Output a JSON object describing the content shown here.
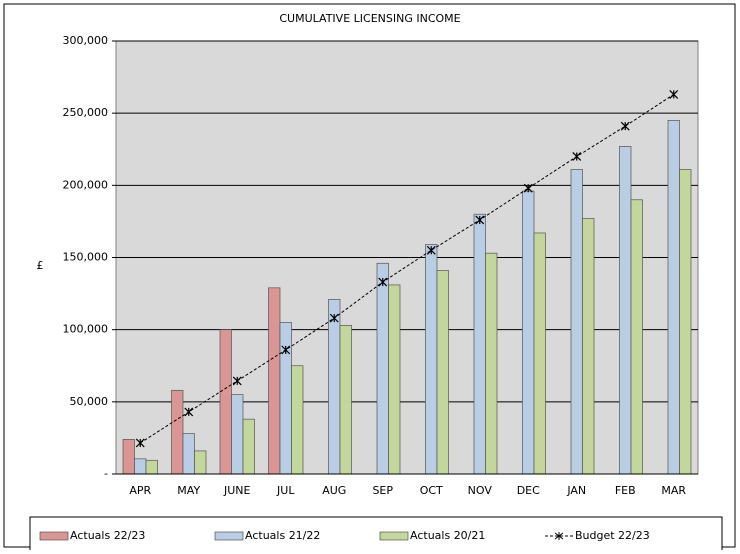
{
  "chart_data": {
    "type": "bar",
    "title": "CUMULATIVE LICENSING INCOME",
    "y_label": "£",
    "categories": [
      "APR",
      "MAY",
      "JUNE",
      "JUL",
      "AUG",
      "SEP",
      "OCT",
      "NOV",
      "DEC",
      "JAN",
      "FEB",
      "MAR"
    ],
    "series": [
      {
        "name": "Actuals  22/23",
        "color": "#d99694",
        "values": [
          24000,
          58000,
          100000,
          129000,
          null,
          null,
          null,
          null,
          null,
          null,
          null,
          null
        ]
      },
      {
        "name": "Actuals  21/22",
        "color": "#b9cde5",
        "values": [
          10500,
          28000,
          55000,
          105000,
          121000,
          146000,
          159000,
          180000,
          196000,
          211000,
          227000,
          245000
        ]
      },
      {
        "name": "Actuals  20/21",
        "color": "#c3d69b",
        "values": [
          9500,
          16000,
          38000,
          75000,
          103000,
          131000,
          141000,
          153000,
          167000,
          177000,
          190000,
          211000
        ]
      },
      {
        "name": "Budget 22/23",
        "type": "line",
        "color": "#000000",
        "values": [
          21500,
          43000,
          64500,
          86000,
          108000,
          133000,
          155000,
          176000,
          198000,
          220000,
          241000,
          263000
        ]
      }
    ],
    "ylim": [
      0,
      300000
    ],
    "yticks": [
      {
        "value": 0,
        "label": "-"
      },
      {
        "value": 50000,
        "label": "50,000"
      },
      {
        "value": 100000,
        "label": "100,000"
      },
      {
        "value": 150000,
        "label": "150,000"
      },
      {
        "value": 200000,
        "label": "200,000"
      },
      {
        "value": 250000,
        "label": "250,000"
      },
      {
        "value": 300000,
        "label": "300,000"
      }
    ],
    "grid": true,
    "legend": "bottom"
  }
}
